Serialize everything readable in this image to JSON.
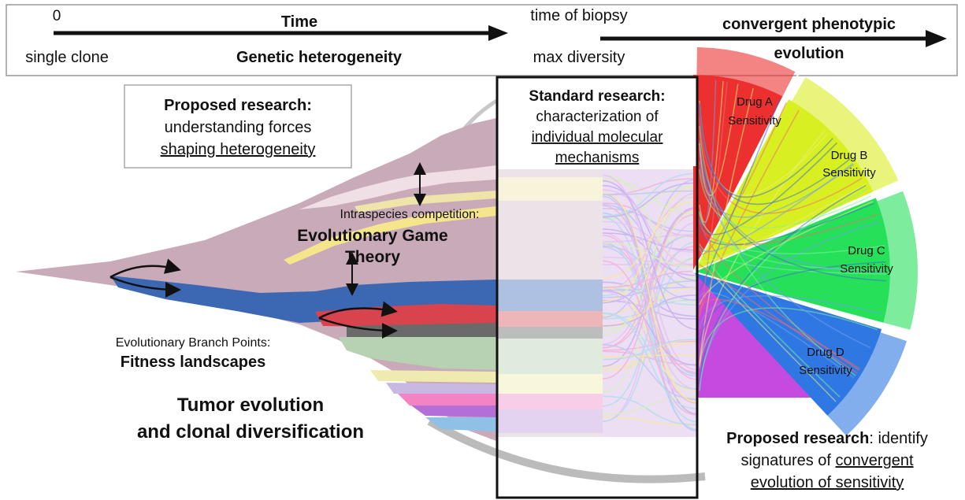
{
  "timeline": {
    "start": "0",
    "axis_label": "Time",
    "biopsy": "time of biopsy",
    "convergent_line1": "convergent phenotypic",
    "convergent_line2": "evolution",
    "start_label": "single clone",
    "heterogeneity": "Genetic heterogeneity",
    "biopsy_label": "max diversity"
  },
  "proposed_heterogeneity": {
    "heading": "Proposed research:",
    "line1": "understanding forces",
    "line2": "shaping heterogeneity"
  },
  "game_theory": {
    "caption": "Intraspecies competition:",
    "title_line1": "Evolutionary Game",
    "title_line2": "Theory"
  },
  "branch_points": {
    "caption": "Evolutionary Branch Points:",
    "title": "Fitness landscapes"
  },
  "tumor": {
    "line1": "Tumor evolution",
    "line2": "and clonal diversification"
  },
  "standard_research": {
    "heading": "Standard research:",
    "line1": "characterization of",
    "line2": "individual molecular",
    "line3": "mechanisms"
  },
  "drugs": [
    {
      "name": "Drug A",
      "label": "Sensitivity"
    },
    {
      "name": "Drug B",
      "label": "Sensitivity"
    },
    {
      "name": "Drug C",
      "label": "Sensitivity"
    },
    {
      "name": "Drug D",
      "label": "Sensitivity"
    }
  ],
  "proposed_convergence": {
    "heading": "Proposed research",
    "line1_rest": ": identify",
    "line2_start": "signatures of",
    "line2_link": "convergent",
    "line3": "evolution of sensitivity"
  }
}
